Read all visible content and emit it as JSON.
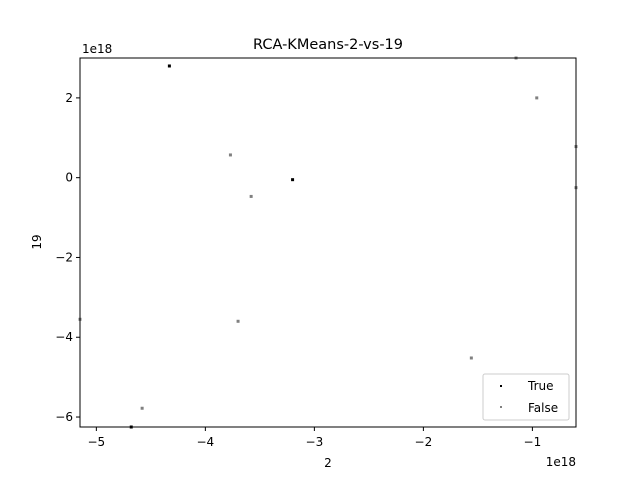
{
  "chart_data": {
    "type": "scatter",
    "title": "RCA-KMeans-2-vs-19",
    "xlabel": "2",
    "ylabel": "19",
    "x_scale_label": "1e18",
    "y_scale_label": "1e18",
    "xlim": [
      -5.15,
      -0.6
    ],
    "ylim": [
      -6.25,
      3.0
    ],
    "x_ticks": [
      -5,
      -4,
      -3,
      -2,
      -1
    ],
    "x_tick_labels": [
      "−5",
      "−4",
      "−3",
      "−2",
      "−1"
    ],
    "y_ticks": [
      -6,
      -4,
      -2,
      0,
      2
    ],
    "y_tick_labels": [
      "−6",
      "−4",
      "−2",
      "0",
      "2"
    ],
    "grid": false,
    "legend_position": "lower-right",
    "series": [
      {
        "name": "True",
        "color": "#000000",
        "points": [
          {
            "x": -4.33,
            "y": 2.8
          },
          {
            "x": -3.2,
            "y": -0.05
          },
          {
            "x": -1.37,
            "y": -5.55
          },
          {
            "x": -4.68,
            "y": -6.25
          }
        ]
      },
      {
        "name": "False",
        "color": "#808080",
        "points": [
          {
            "x": -3.77,
            "y": 0.57
          },
          {
            "x": -3.58,
            "y": -0.47
          },
          {
            "x": -3.7,
            "y": -3.6
          },
          {
            "x": -4.58,
            "y": -5.78
          },
          {
            "x": -1.56,
            "y": -4.52
          },
          {
            "x": -0.96,
            "y": 2.0
          },
          {
            "x": -0.6,
            "y": 0.78
          },
          {
            "x": -0.6,
            "y": -0.25
          },
          {
            "x": -5.15,
            "y": -3.55
          },
          {
            "x": -1.15,
            "y": 3.0
          }
        ]
      }
    ]
  }
}
